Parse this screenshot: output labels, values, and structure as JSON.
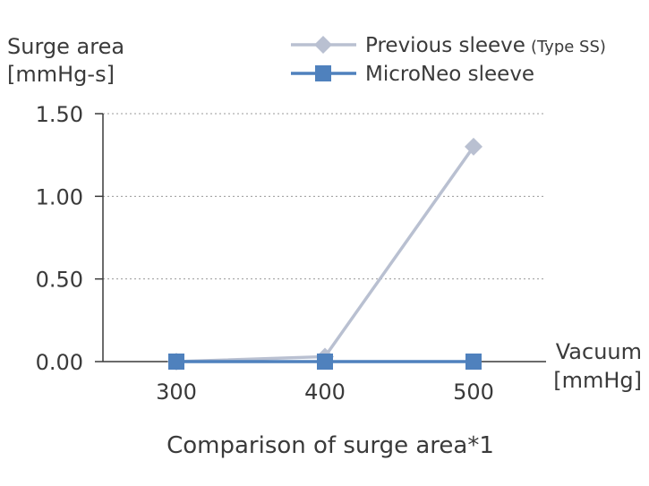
{
  "chart_data": {
    "type": "line",
    "title": "Comparison of surge area*1",
    "ylabel_line1": "Surge area",
    "ylabel_line2": "[mmHg-s]",
    "xlabel_line1": "Vacuum",
    "xlabel_line2": "[mmHg]",
    "categories": [
      "300",
      "400",
      "500"
    ],
    "y_ticks": [
      "0.00",
      "0.50",
      "1.00",
      "1.50"
    ],
    "ylim": [
      0,
      1.5
    ],
    "grid": true,
    "legend_position": "top-right",
    "series": [
      {
        "name": "Previous sleeve",
        "name_suffix": "(Type SS)",
        "marker": "diamond",
        "color": "#b9c0d1",
        "values": [
          0.0,
          0.03,
          1.3
        ]
      },
      {
        "name": "MicroNeo sleeve",
        "marker": "square",
        "color": "#4f81bd",
        "values": [
          0.0,
          0.0,
          0.0
        ]
      }
    ]
  }
}
